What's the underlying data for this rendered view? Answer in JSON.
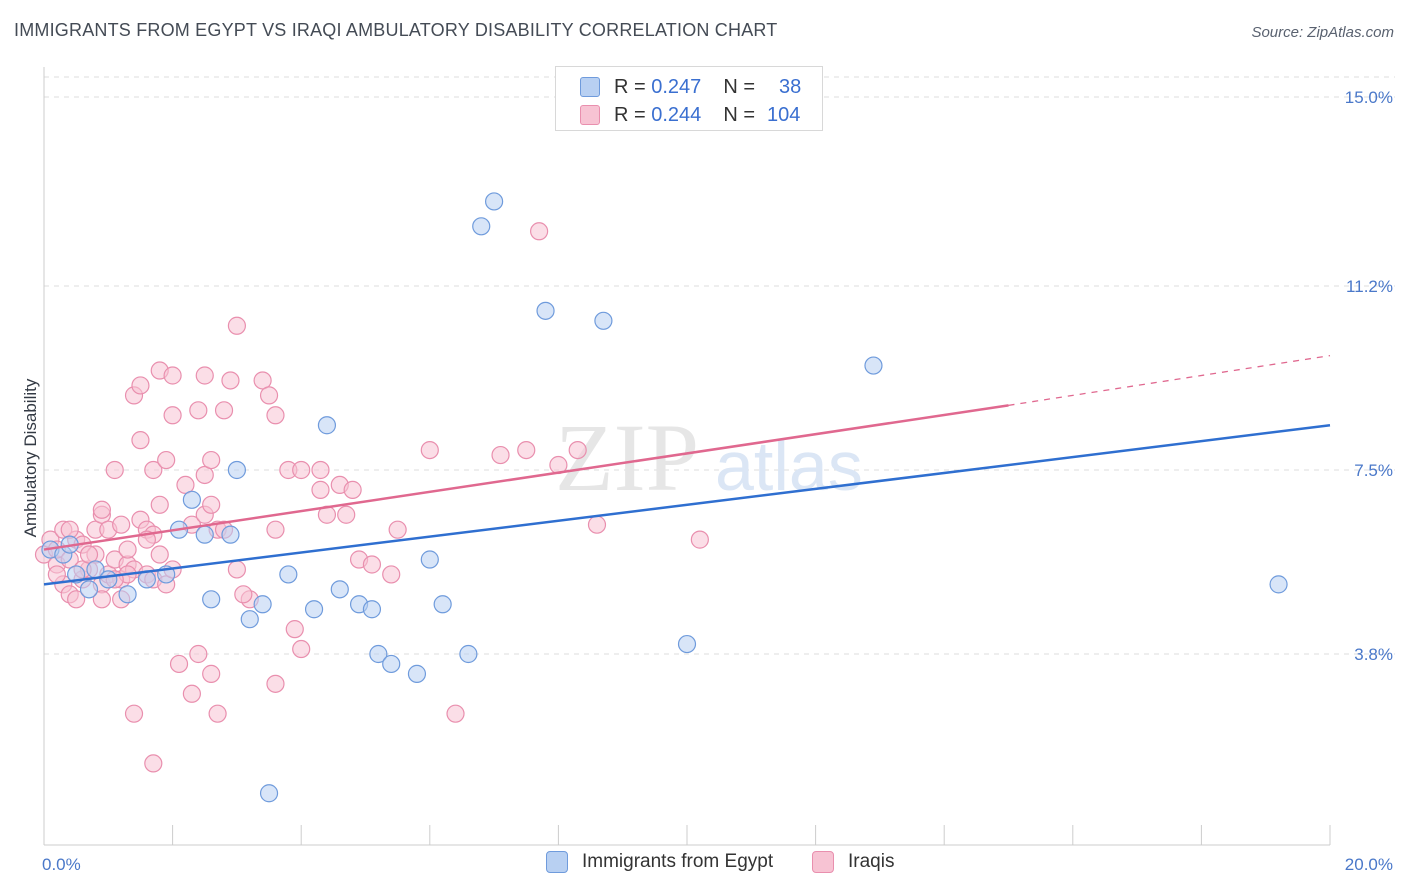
{
  "header": {
    "title": "IMMIGRANTS FROM EGYPT VS IRAQI AMBULATORY DISABILITY CORRELATION CHART",
    "source": "Source: ZipAtlas.com"
  },
  "legend": {
    "series": [
      {
        "r_label": "R =",
        "r_value": "0.247",
        "n_label": "N =",
        "n_value": "38"
      },
      {
        "r_label": "R =",
        "r_value": "0.244",
        "n_label": "N =",
        "n_value": "104"
      }
    ]
  },
  "bottom_legend": {
    "egypt": "Immigrants from Egypt",
    "iraqis": "Iraqis"
  },
  "colors": {
    "egypt_fill": "#b8d0f2",
    "egypt_stroke": "#6f9bdc",
    "egypt_line": "#2f6fd0",
    "iraqi_fill": "#f7c3d3",
    "iraqi_stroke": "#e98fae",
    "iraqi_line": "#e0688f",
    "grid": "#dcdcdc",
    "tick_label": "#4a78c9"
  },
  "watermark": {
    "zip": "ZIP",
    "atlas": "atlas"
  },
  "chart_data": {
    "type": "scatter",
    "title": "IMMIGRANTS FROM EGYPT VS IRAQI AMBULATORY DISABILITY CORRELATION CHART",
    "xlabel": "",
    "ylabel": "Ambulatory Disability",
    "xlim": [
      0.0,
      20.0
    ],
    "ylim": [
      0.0,
      15.5
    ],
    "x_tick_labels": [
      "0.0%",
      "20.0%"
    ],
    "y_ticks": [
      3.8,
      7.5,
      11.2,
      15.0
    ],
    "y_tick_labels": [
      "3.8%",
      "7.5%",
      "11.2%",
      "15.0%"
    ],
    "grid": true,
    "series": [
      {
        "name": "Immigrants from Egypt",
        "r": 0.247,
        "n": 38,
        "trend": {
          "x": [
            0.0,
            20.0
          ],
          "y": [
            5.2,
            8.4
          ]
        },
        "points": [
          [
            0.1,
            5.9
          ],
          [
            0.3,
            5.8
          ],
          [
            0.4,
            6.0
          ],
          [
            0.5,
            5.4
          ],
          [
            0.7,
            5.1
          ],
          [
            0.8,
            5.5
          ],
          [
            1.0,
            5.3
          ],
          [
            1.3,
            5.0
          ],
          [
            1.6,
            5.3
          ],
          [
            1.9,
            5.4
          ],
          [
            2.1,
            6.3
          ],
          [
            2.3,
            6.9
          ],
          [
            2.5,
            6.2
          ],
          [
            2.6,
            4.9
          ],
          [
            2.9,
            6.2
          ],
          [
            3.0,
            7.5
          ],
          [
            3.2,
            4.5
          ],
          [
            3.4,
            4.8
          ],
          [
            3.8,
            5.4
          ],
          [
            4.2,
            4.7
          ],
          [
            4.4,
            8.4
          ],
          [
            4.6,
            5.1
          ],
          [
            4.9,
            4.8
          ],
          [
            5.1,
            4.7
          ],
          [
            5.2,
            3.8
          ],
          [
            5.4,
            3.6
          ],
          [
            5.8,
            3.4
          ],
          [
            6.0,
            5.7
          ],
          [
            6.2,
            4.8
          ],
          [
            6.6,
            3.8
          ],
          [
            6.8,
            12.4
          ],
          [
            7.0,
            12.9
          ],
          [
            7.8,
            10.7
          ],
          [
            8.7,
            10.5
          ],
          [
            10.0,
            4.0
          ],
          [
            12.9,
            9.6
          ],
          [
            19.2,
            5.2
          ],
          [
            3.5,
            1.0
          ]
        ]
      },
      {
        "name": "Iraqis",
        "r": 0.244,
        "n": 104,
        "trend": {
          "x": [
            0.0,
            15.0
          ],
          "y": [
            5.9,
            8.8
          ]
        },
        "trend_dashed": {
          "x": [
            15.0,
            20.0
          ],
          "y": [
            8.8,
            9.8
          ]
        },
        "points": [
          [
            0.0,
            5.8
          ],
          [
            0.1,
            6.1
          ],
          [
            0.2,
            5.6
          ],
          [
            0.2,
            5.9
          ],
          [
            0.3,
            6.3
          ],
          [
            0.3,
            5.2
          ],
          [
            0.4,
            5.7
          ],
          [
            0.4,
            5.0
          ],
          [
            0.5,
            4.9
          ],
          [
            0.5,
            6.1
          ],
          [
            0.6,
            5.3
          ],
          [
            0.6,
            6.0
          ],
          [
            0.7,
            5.5
          ],
          [
            0.8,
            5.8
          ],
          [
            0.8,
            6.3
          ],
          [
            0.9,
            5.2
          ],
          [
            0.9,
            4.9
          ],
          [
            0.9,
            6.6
          ],
          [
            1.0,
            5.4
          ],
          [
            1.0,
            6.3
          ],
          [
            1.1,
            5.7
          ],
          [
            1.1,
            7.5
          ],
          [
            1.2,
            5.3
          ],
          [
            1.2,
            6.4
          ],
          [
            1.3,
            5.6
          ],
          [
            1.3,
            5.9
          ],
          [
            1.4,
            5.5
          ],
          [
            1.4,
            9.0
          ],
          [
            1.5,
            9.2
          ],
          [
            1.5,
            8.1
          ],
          [
            1.5,
            6.5
          ],
          [
            1.6,
            6.3
          ],
          [
            1.6,
            5.4
          ],
          [
            1.7,
            6.2
          ],
          [
            1.7,
            5.3
          ],
          [
            1.7,
            7.5
          ],
          [
            1.8,
            5.8
          ],
          [
            1.8,
            6.8
          ],
          [
            1.8,
            9.5
          ],
          [
            1.9,
            5.2
          ],
          [
            1.9,
            7.7
          ],
          [
            2.0,
            8.6
          ],
          [
            2.0,
            5.5
          ],
          [
            2.0,
            9.4
          ],
          [
            2.1,
            3.6
          ],
          [
            2.2,
            7.2
          ],
          [
            2.3,
            6.4
          ],
          [
            2.3,
            3.0
          ],
          [
            2.4,
            8.7
          ],
          [
            2.5,
            7.4
          ],
          [
            2.5,
            9.4
          ],
          [
            2.5,
            6.6
          ],
          [
            2.6,
            3.4
          ],
          [
            2.6,
            6.8
          ],
          [
            2.6,
            7.7
          ],
          [
            2.7,
            6.3
          ],
          [
            2.7,
            2.6
          ],
          [
            2.8,
            8.7
          ],
          [
            2.9,
            9.3
          ],
          [
            3.0,
            5.5
          ],
          [
            3.0,
            10.4
          ],
          [
            3.2,
            4.9
          ],
          [
            3.4,
            9.3
          ],
          [
            3.5,
            9.0
          ],
          [
            3.6,
            8.6
          ],
          [
            3.6,
            6.3
          ],
          [
            3.6,
            3.2
          ],
          [
            3.8,
            7.5
          ],
          [
            3.9,
            4.3
          ],
          [
            4.0,
            3.9
          ],
          [
            4.0,
            7.5
          ],
          [
            4.3,
            7.5
          ],
          [
            4.3,
            7.1
          ],
          [
            4.4,
            6.6
          ],
          [
            4.6,
            7.2
          ],
          [
            4.7,
            6.6
          ],
          [
            4.8,
            7.1
          ],
          [
            4.9,
            5.7
          ],
          [
            5.1,
            5.6
          ],
          [
            5.4,
            5.4
          ],
          [
            5.5,
            6.3
          ],
          [
            6.0,
            7.9
          ],
          [
            6.4,
            2.6
          ],
          [
            7.1,
            7.8
          ],
          [
            7.5,
            7.9
          ],
          [
            7.7,
            12.3
          ],
          [
            8.0,
            7.6
          ],
          [
            8.3,
            7.9
          ],
          [
            8.6,
            6.4
          ],
          [
            10.2,
            6.1
          ],
          [
            0.9,
            6.7
          ],
          [
            1.3,
            5.4
          ],
          [
            1.6,
            6.1
          ],
          [
            2.8,
            6.3
          ],
          [
            1.7,
            1.6
          ],
          [
            1.4,
            2.6
          ],
          [
            0.6,
            5.5
          ],
          [
            1.1,
            5.3
          ],
          [
            0.2,
            5.4
          ],
          [
            0.4,
            6.3
          ],
          [
            1.2,
            4.9
          ],
          [
            2.4,
            3.8
          ],
          [
            3.1,
            5.0
          ],
          [
            0.7,
            5.8
          ]
        ]
      }
    ]
  }
}
